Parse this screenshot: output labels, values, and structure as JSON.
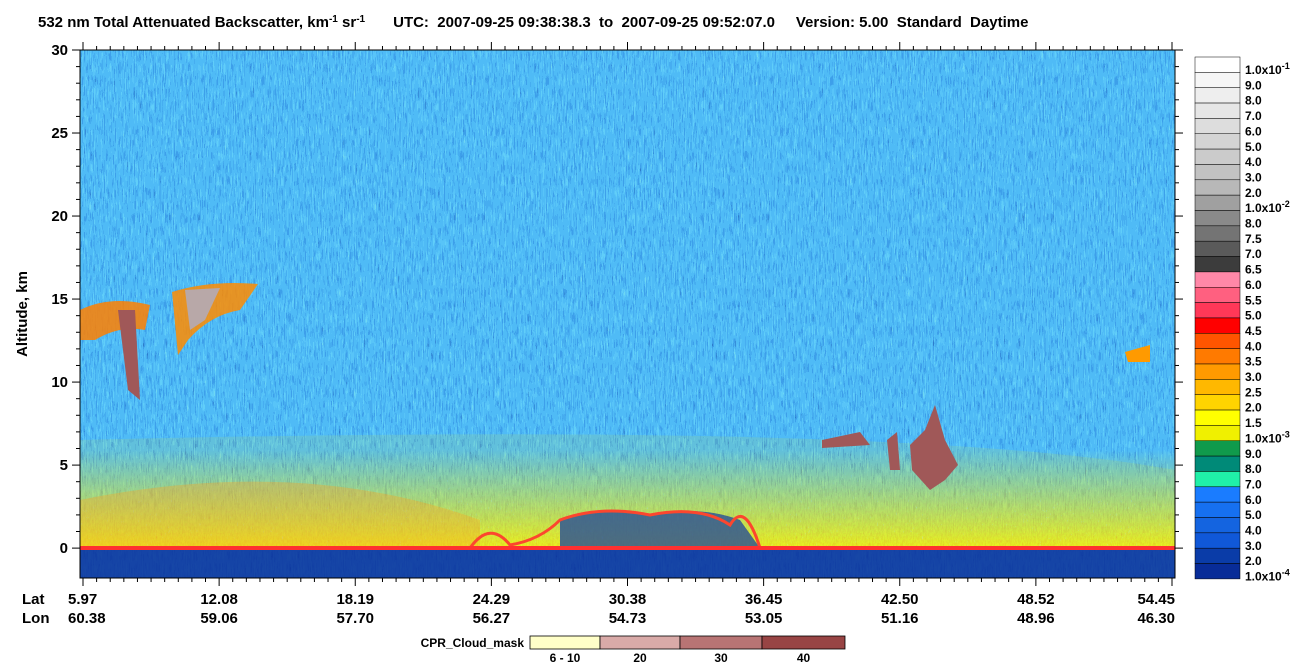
{
  "chart_data": {
    "type": "curtain",
    "title": [
      "532 nm Total Attenuated Backscatter, km",
      "-1",
      " sr",
      "-1"
    ],
    "title_info": "UTC:  2007-09-25 09:38:38.3  to  2007-09-25 09:52:07.0     Version: 5.00  Standard  Daytime",
    "y_label": "Altitude, km",
    "ylim": [
      -1.8,
      30
    ],
    "yticks": [
      0,
      5,
      10,
      15,
      20,
      25,
      30
    ],
    "x_row_labels": [
      "Lat",
      "Lon"
    ],
    "lat": [
      5.97,
      12.08,
      18.19,
      24.29,
      30.38,
      36.45,
      {
        "value": 42.5,
        "label": "42.50"
      },
      48.52,
      54.45
    ],
    "lon": [
      60.38,
      59.06,
      {
        "value": 57.7,
        "label": "57.70"
      },
      56.27,
      54.73,
      53.05,
      51.16,
      48.96,
      {
        "value": 46.3,
        "label": "46.30"
      }
    ],
    "colorbar": {
      "labels": [
        {
          "text": "1.0x10",
          "sup": "-1"
        },
        "9.0",
        "8.0",
        "7.0",
        "6.0",
        "5.0",
        "4.0",
        "3.0",
        "2.0",
        {
          "text": "1.0x10",
          "sup": "-2"
        },
        "8.0",
        "7.5",
        "7.0",
        "6.5",
        "6.0",
        "5.5",
        "5.0",
        "4.5",
        "4.0",
        "3.5",
        "3.0",
        "2.5",
        "2.0",
        "1.5",
        {
          "text": "1.0x10",
          "sup": "-3"
        },
        "9.0",
        "8.0",
        "7.0",
        "6.0",
        "5.0",
        "4.0",
        "3.0",
        "2.0",
        {
          "text": "1.0x10",
          "sup": "-4"
        }
      ],
      "colors": [
        "#ffffff",
        "#f6f6f6",
        "#eeeeee",
        "#e6e6e6",
        "#dddddd",
        "#d4d4d4",
        "#cbcbcb",
        "#c2c2c2",
        "#b8b8b8",
        "#a0a0a0",
        "#8a8a8a",
        "#747474",
        "#5a5a5a",
        "#3c3c3c",
        "#ff88a8",
        "#ff6080",
        "#ff3858",
        "#ff0000",
        "#ff5500",
        "#ff7a00",
        "#ff9a00",
        "#ffb800",
        "#ffd400",
        "#ffff00",
        "#f0f000",
        "#109a4c",
        "#008a78",
        "#20f0a8",
        "#1a7cff",
        "#1670f0",
        "#1464e0",
        "#1058d8",
        "#0a3ca8",
        "#082c98"
      ]
    },
    "cpr_legend": {
      "title": "CPR_Cloud_mask",
      "labels": [
        "6 - 10",
        "20",
        "30",
        "40"
      ],
      "colors": [
        "#ffffc8",
        "#d9aaa8",
        "#b87474",
        "#984444"
      ]
    }
  }
}
